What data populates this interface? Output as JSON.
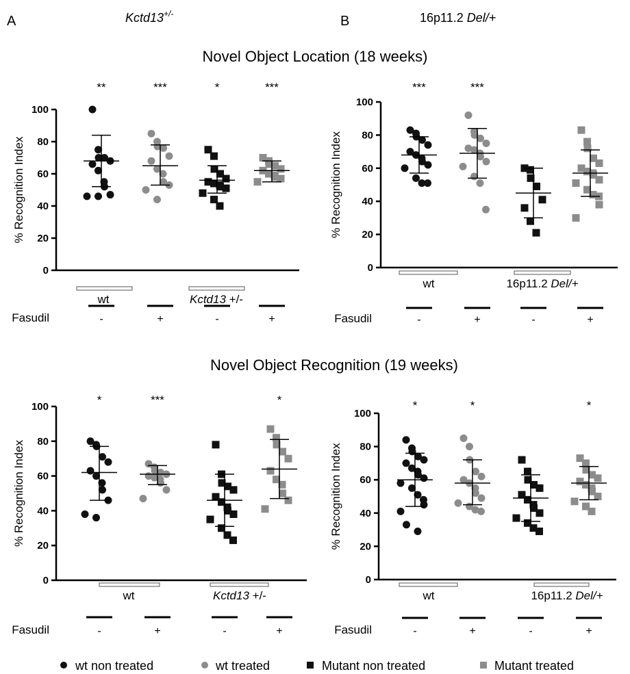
{
  "panel_labels": {
    "a": "A",
    "b": "B"
  },
  "genotype_titles": {
    "a": {
      "gene": "Kctd13",
      "sup": "+/-"
    },
    "b": {
      "prefix": "16p11.2 ",
      "italic": "Del/+"
    }
  },
  "section_titles": {
    "top": "Novel Object Location (18 weeks)",
    "bottom": "Novel Object Recognition (19 weeks)"
  },
  "ylabel": "% Recognition Index",
  "treatment": {
    "label": "Fasudil",
    "minus": "-",
    "plus": "+"
  },
  "groups": {
    "a": {
      "wt": "wt",
      "mut_italic": "Kctd13",
      "mut_rest": " +/-"
    },
    "b": {
      "wt": "wt",
      "mut_prefix": "16p11.2 ",
      "mut_italic": "Del/+"
    }
  },
  "legend": [
    {
      "label": "wt non treated",
      "marker": "circle",
      "color": "#111111"
    },
    {
      "label": "wt treated",
      "marker": "circle",
      "color": "#8c8c8c"
    },
    {
      "label": "Mutant non treated",
      "marker": "square",
      "color": "#111111"
    },
    {
      "label": "Mutant treated",
      "marker": "square",
      "color": "#8c8c8c"
    }
  ],
  "colors": {
    "wt_non_treated": "#111111",
    "wt_treated": "#8c8c8c",
    "mutant_non_treated": "#111111",
    "mutant_treated": "#8c8c8c"
  },
  "chart_data": [
    {
      "id": "A-top",
      "type": "scatter",
      "ylabel": "% Recognition Index",
      "ylim": [
        0,
        100
      ],
      "yticks": [
        0,
        20,
        40,
        60,
        80,
        100
      ],
      "categories": [
        "wt -",
        "wt +",
        "Kctd13 +/- -",
        "Kctd13 +/- +"
      ],
      "series": [
        {
          "values": [
            100,
            75,
            70,
            70,
            68,
            66,
            62,
            55,
            52,
            47,
            46,
            46
          ],
          "mean": 68,
          "sd_low": 52,
          "sd_high": 84,
          "sig": "**"
        },
        {
          "values": [
            85,
            80,
            77,
            76,
            71,
            68,
            63,
            60,
            55,
            53,
            50,
            44
          ],
          "mean": 65,
          "sd_low": 53,
          "sd_high": 78,
          "sig": "***"
        },
        {
          "values": [
            75,
            71,
            63,
            60,
            57,
            55,
            54,
            53,
            52,
            51,
            48,
            44,
            40
          ],
          "mean": 56,
          "sd_low": 48,
          "sd_high": 65,
          "sig": "*"
        },
        {
          "values": [
            70,
            68,
            66,
            65,
            63,
            62,
            60,
            59,
            58,
            57,
            55
          ],
          "mean": 62,
          "sd_low": 55,
          "sd_high": 68,
          "sig": "***"
        }
      ]
    },
    {
      "id": "B-top",
      "type": "scatter",
      "ylabel": "% Recognition Index",
      "ylim": [
        0,
        100
      ],
      "yticks": [
        0,
        20,
        40,
        60,
        80,
        100
      ],
      "categories": [
        "wt -",
        "wt +",
        "16p11.2 Del/+ -",
        "16p11.2 Del/+ +"
      ],
      "series": [
        {
          "values": [
            83,
            81,
            79,
            77,
            74,
            70,
            68,
            66,
            64,
            62,
            60,
            54,
            51,
            51
          ],
          "mean": 68,
          "sd_low": 57,
          "sd_high": 79,
          "sig": "***"
        },
        {
          "values": [
            92,
            82,
            80,
            78,
            75,
            72,
            71,
            69,
            67,
            64,
            61,
            55,
            51,
            35
          ],
          "mean": 69,
          "sd_low": 54,
          "sd_high": 84,
          "sig": "***"
        },
        {
          "values": [
            60,
            59,
            54,
            49,
            41,
            36,
            28,
            21
          ],
          "mean": 45,
          "sd_low": 30,
          "sd_high": 60,
          "sig": ""
        },
        {
          "values": [
            83,
            76,
            72,
            66,
            63,
            60,
            58,
            57,
            56,
            53,
            51,
            47,
            44,
            43,
            38,
            30
          ],
          "mean": 57,
          "sd_low": 43,
          "sd_high": 71,
          "sig": ""
        }
      ]
    },
    {
      "id": "A-bottom",
      "type": "scatter",
      "ylabel": "% Recognition Index",
      "ylim": [
        0,
        100
      ],
      "yticks": [
        0,
        20,
        40,
        60,
        80,
        100
      ],
      "categories": [
        "wt -",
        "wt +",
        "Kctd13 +/- -",
        "Kctd13 +/- +"
      ],
      "series": [
        {
          "values": [
            80,
            78,
            77,
            71,
            68,
            63,
            60,
            56,
            52,
            46,
            38,
            36
          ],
          "mean": 62,
          "sd_low": 46,
          "sd_high": 77,
          "sig": "*"
        },
        {
          "values": [
            67,
            65,
            63,
            62,
            61,
            60,
            59,
            58,
            56,
            52,
            47
          ],
          "mean": 61,
          "sd_low": 55,
          "sd_high": 66,
          "sig": "***"
        },
        {
          "values": [
            78,
            61,
            56,
            54,
            52,
            48,
            45,
            42,
            40,
            38,
            35,
            30,
            26,
            23
          ],
          "mean": 46,
          "sd_low": 31,
          "sd_high": 61,
          "sig": ""
        },
        {
          "values": [
            87,
            82,
            78,
            74,
            70,
            63,
            58,
            55,
            50,
            46,
            41
          ],
          "mean": 64,
          "sd_low": 47,
          "sd_high": 81,
          "sig": "*"
        }
      ]
    },
    {
      "id": "B-bottom",
      "type": "scatter",
      "ylabel": "% Recognition Index",
      "ylim": [
        0,
        100
      ],
      "yticks": [
        0,
        20,
        40,
        60,
        80,
        100
      ],
      "categories": [
        "wt -",
        "wt +",
        "16p11.2 Del/+ -",
        "16p11.2 Del/+ +"
      ],
      "series": [
        {
          "values": [
            84,
            79,
            77,
            74,
            72,
            70,
            67,
            65,
            63,
            61,
            58,
            55,
            51,
            48,
            45,
            41,
            33,
            29
          ],
          "mean": 60,
          "sd_low": 44,
          "sd_high": 76,
          "sig": "*"
        },
        {
          "values": [
            85,
            80,
            72,
            65,
            62,
            60,
            58,
            55,
            52,
            49,
            46,
            44,
            42,
            41
          ],
          "mean": 58,
          "sd_low": 45,
          "sd_high": 72,
          "sig": "*"
        },
        {
          "values": [
            72,
            65,
            60,
            57,
            55,
            51,
            48,
            45,
            43,
            40,
            37,
            34,
            31,
            29
          ],
          "mean": 49,
          "sd_low": 35,
          "sd_high": 63,
          "sig": ""
        },
        {
          "values": [
            73,
            70,
            66,
            63,
            61,
            59,
            57,
            55,
            53,
            50,
            47,
            44,
            41
          ],
          "mean": 58,
          "sd_low": 48,
          "sd_high": 68,
          "sig": "*"
        }
      ]
    }
  ]
}
